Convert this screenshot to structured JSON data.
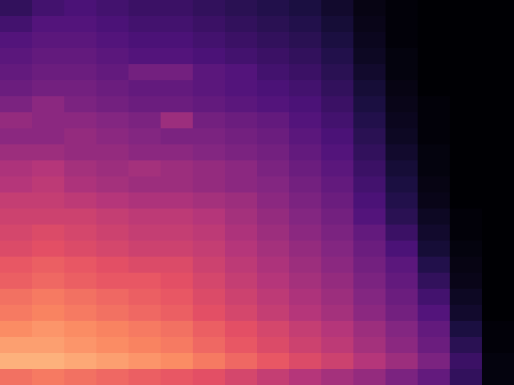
{
  "chart_data": {
    "type": "heatmap",
    "color": "magma",
    "tick_labels": false,
    "zlim": [
      0,
      100
    ],
    "cells": [
      [
        18,
        22,
        24,
        22,
        20,
        20,
        18,
        16,
        14,
        12,
        8,
        3,
        1,
        0,
        0,
        0
      ],
      [
        22,
        26,
        26,
        24,
        22,
        22,
        20,
        18,
        16,
        14,
        10,
        4,
        1,
        0,
        0,
        0
      ],
      [
        26,
        28,
        28,
        26,
        24,
        24,
        22,
        20,
        18,
        16,
        12,
        5,
        1,
        0,
        0,
        0
      ],
      [
        28,
        30,
        30,
        28,
        26,
        26,
        24,
        22,
        20,
        18,
        14,
        6,
        2,
        0,
        0,
        0
      ],
      [
        30,
        32,
        32,
        30,
        34,
        34,
        28,
        26,
        22,
        20,
        16,
        8,
        2,
        0,
        0,
        0
      ],
      [
        32,
        34,
        34,
        32,
        30,
        30,
        28,
        26,
        24,
        22,
        18,
        10,
        3,
        0,
        0,
        0
      ],
      [
        36,
        40,
        36,
        34,
        32,
        32,
        30,
        28,
        26,
        24,
        20,
        12,
        4,
        1,
        0,
        0
      ],
      [
        42,
        40,
        40,
        38,
        36,
        44,
        34,
        32,
        30,
        26,
        22,
        14,
        5,
        1,
        0,
        0
      ],
      [
        40,
        40,
        42,
        40,
        38,
        36,
        36,
        34,
        32,
        28,
        24,
        16,
        6,
        1,
        0,
        0
      ],
      [
        44,
        44,
        42,
        42,
        40,
        40,
        38,
        36,
        34,
        30,
        26,
        18,
        8,
        2,
        0,
        0
      ],
      [
        48,
        50,
        46,
        44,
        46,
        44,
        42,
        40,
        36,
        32,
        28,
        20,
        10,
        2,
        0,
        0
      ],
      [
        50,
        52,
        48,
        46,
        44,
        44,
        42,
        40,
        38,
        34,
        30,
        22,
        12,
        3,
        0,
        0
      ],
      [
        54,
        54,
        52,
        50,
        48,
        48,
        46,
        44,
        40,
        36,
        32,
        24,
        14,
        4,
        0,
        0
      ],
      [
        56,
        56,
        56,
        54,
        52,
        52,
        50,
        46,
        42,
        38,
        34,
        26,
        16,
        6,
        1,
        0
      ],
      [
        58,
        60,
        58,
        56,
        54,
        54,
        52,
        48,
        44,
        40,
        36,
        30,
        20,
        8,
        1,
        0
      ],
      [
        60,
        62,
        60,
        58,
        56,
        56,
        54,
        50,
        46,
        42,
        38,
        32,
        24,
        10,
        2,
        0
      ],
      [
        64,
        66,
        64,
        62,
        60,
        60,
        56,
        52,
        48,
        44,
        40,
        34,
        28,
        14,
        3,
        0
      ],
      [
        66,
        68,
        66,
        64,
        64,
        62,
        58,
        54,
        50,
        46,
        42,
        36,
        30,
        18,
        4,
        0
      ],
      [
        70,
        72,
        70,
        68,
        66,
        64,
        60,
        56,
        52,
        48,
        44,
        38,
        32,
        22,
        6,
        0
      ],
      [
        72,
        74,
        72,
        70,
        68,
        66,
        62,
        58,
        54,
        50,
        46,
        40,
        34,
        26,
        8,
        0
      ],
      [
        76,
        78,
        76,
        74,
        72,
        70,
        66,
        62,
        58,
        54,
        50,
        44,
        38,
        30,
        12,
        1
      ],
      [
        80,
        80,
        78,
        76,
        74,
        72,
        68,
        64,
        60,
        56,
        52,
        46,
        40,
        32,
        16,
        1
      ],
      [
        84,
        84,
        82,
        80,
        78,
        76,
        72,
        68,
        64,
        60,
        56,
        50,
        44,
        36,
        20,
        2
      ],
      [
        70,
        72,
        70,
        68,
        66,
        64,
        62,
        58,
        54,
        50,
        46,
        42,
        36,
        30,
        18,
        2
      ]
    ]
  }
}
